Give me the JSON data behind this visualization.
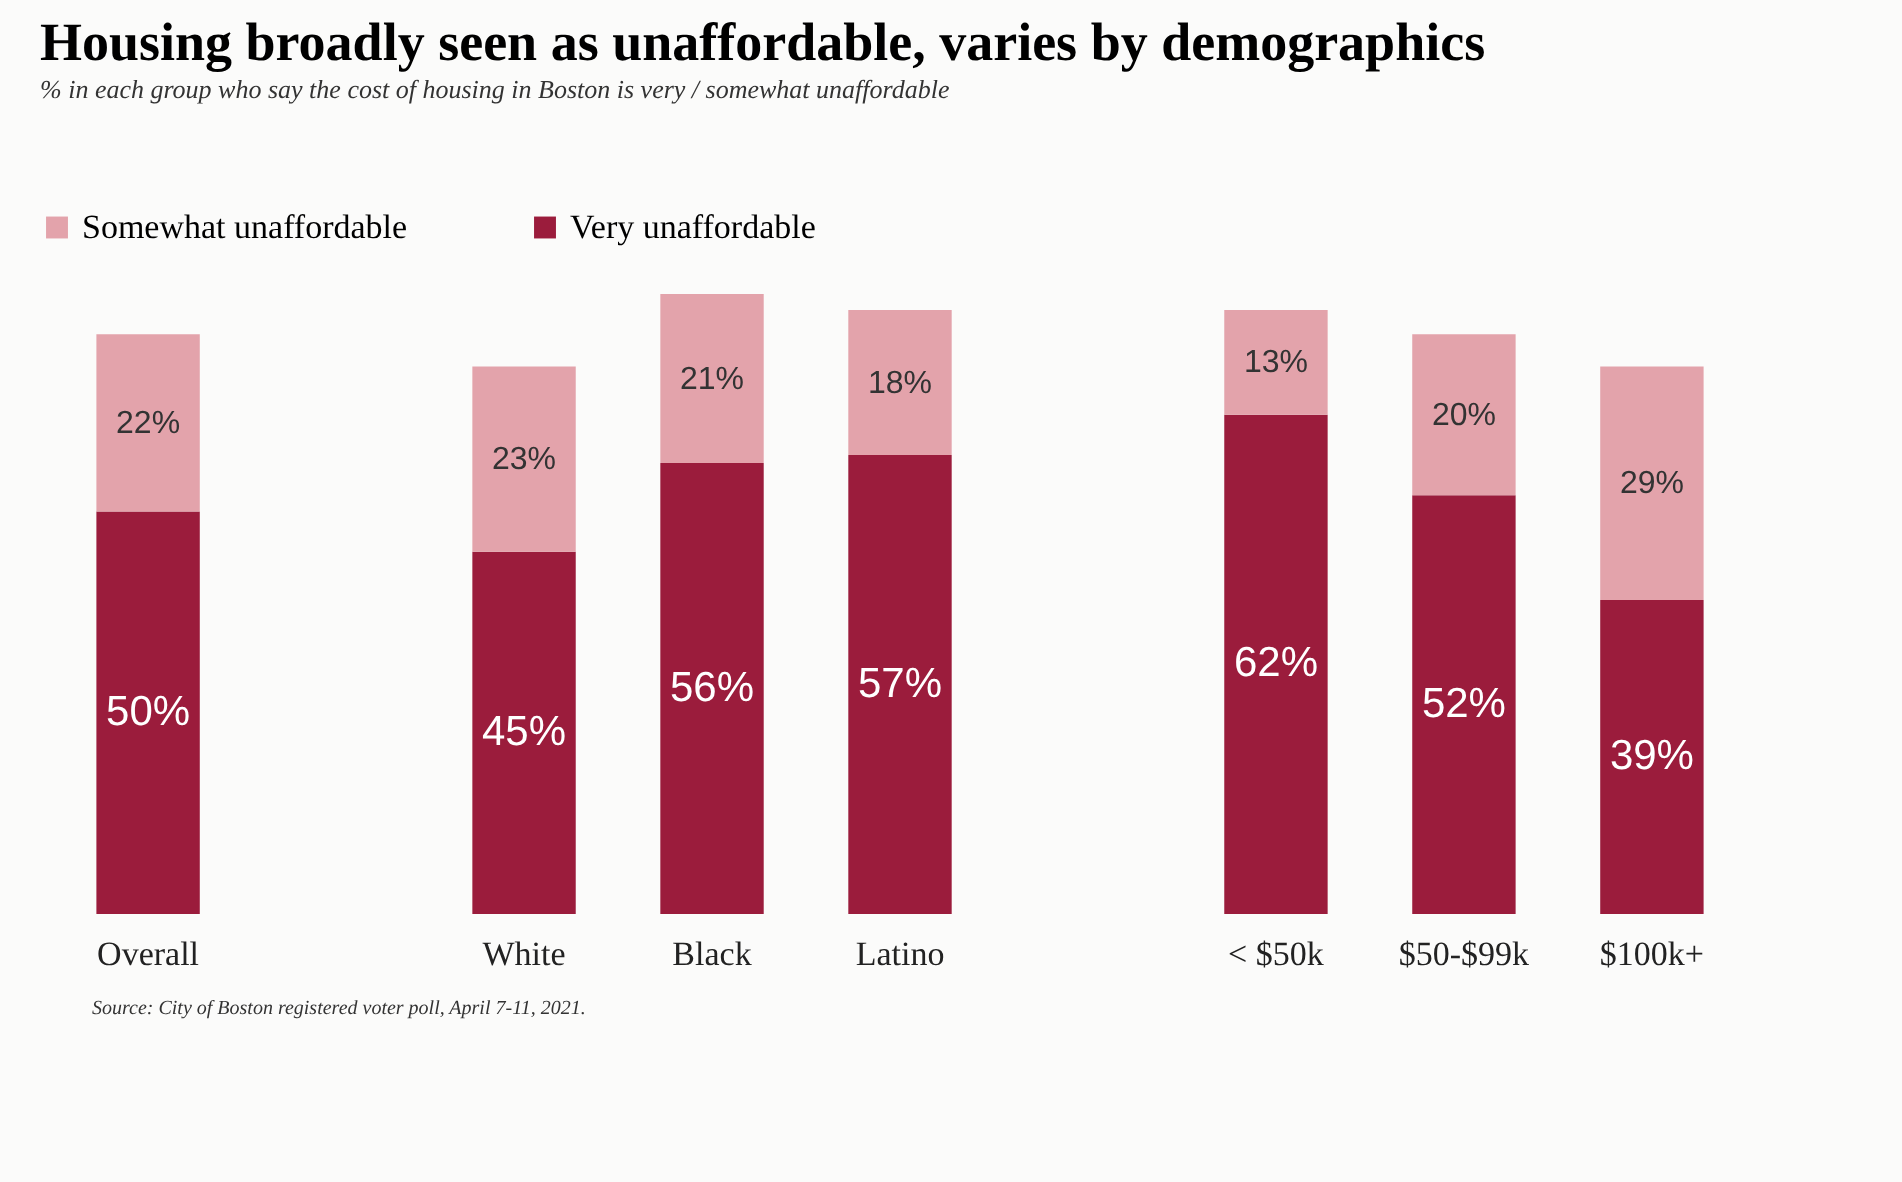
{
  "chart_data": {
    "type": "bar",
    "title": "Housing broadly seen as unaffordable, varies by demographics",
    "subtitle": "% in each group who say the cost of housing in Boston is very / somewhat unaffordable",
    "categories": [
      "Overall",
      null,
      "White",
      "Black",
      "Latino",
      null,
      "< $50k",
      "$50-$99k",
      "$100k+"
    ],
    "stacked": true,
    "legend": "top left",
    "grid": false,
    "series": [
      {
        "name": "Very unaffordable",
        "color": "#9b1c3c",
        "values": [
          50,
          null,
          45,
          56,
          57,
          null,
          62,
          52,
          39
        ],
        "value_labels": [
          "50%",
          null,
          "45%",
          "56%",
          "57%",
          null,
          "62%",
          "52%",
          "39%"
        ]
      },
      {
        "name": "Somewhat unaffordable",
        "color": "#e3a3ab",
        "values": [
          22,
          null,
          23,
          21,
          18,
          null,
          13,
          20,
          29
        ],
        "value_labels": [
          "22%",
          null,
          "23%",
          "21%",
          "18%",
          null,
          "13%",
          "20%",
          "29%"
        ]
      }
    ],
    "annotations": [
      "Source: City of Boston registered voter poll, April 7-11, 2021."
    ]
  }
}
